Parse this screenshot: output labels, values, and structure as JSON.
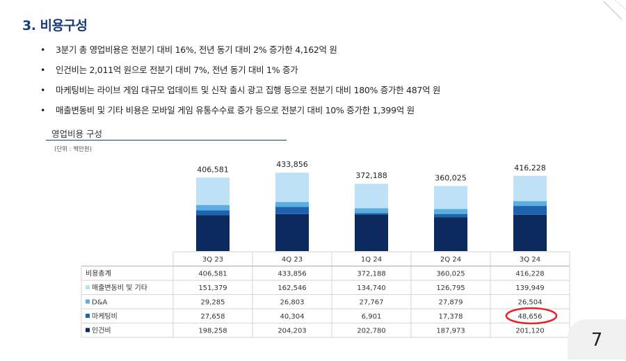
{
  "header": {
    "title": "3. 비용구성"
  },
  "bullets": [
    "3분기 총 영업비용은 전분기 대비 16%, 전년 동기 대비 2% 증가한 4,162억 원",
    "인건비는 2,011억 원으로 전분기 대비 7%, 전년 동기 대비 1% 증가",
    "마케팅비는 라이브 게임 대규모 업데이트 및 신작 출시 광고 집행 등으로 전분기 대비 180% 증가한 487억 원",
    "매출변동비 및 기타 비용은 모바일 게임 유통수수료 증가 등으로 전분기 대비 10% 증가한 1,399억 원"
  ],
  "chart_data": {
    "type": "bar",
    "stacked": true,
    "title": "영업비용 구성",
    "unit_label": "(단위 : 백만원)",
    "categories": [
      "3Q 23",
      "4Q 23",
      "1Q 24",
      "2Q 24",
      "3Q 24"
    ],
    "totals_label": "비용총계",
    "totals": [
      "406,581",
      "433,856",
      "372,188",
      "360,025",
      "416,228"
    ],
    "total_values": [
      406581,
      433856,
      372188,
      360025,
      416228
    ],
    "series": [
      {
        "name": "인건비",
        "color": "#0d2a5e",
        "values": [
          198258,
          204203,
          202780,
          187973,
          201120
        ]
      },
      {
        "name": "마케팅비",
        "color": "#1e63b0",
        "values": [
          27658,
          40304,
          6901,
          17378,
          48656
        ]
      },
      {
        "name": "D&A",
        "color": "#5aaee0",
        "values": [
          29285,
          26803,
          27767,
          27879,
          26504
        ]
      },
      {
        "name": "매출변동비 및 기타",
        "color": "#bfe1f5",
        "values": [
          151379,
          162546,
          134740,
          126795,
          139949
        ]
      }
    ],
    "table_row_order": [
      "매출변동비 및 기타",
      "D&A",
      "마케팅비",
      "인건비"
    ],
    "highlight": {
      "series": "마케팅비",
      "category": "3Q 24",
      "color": "#e8212a"
    }
  },
  "footer": {
    "page_number": "7"
  }
}
